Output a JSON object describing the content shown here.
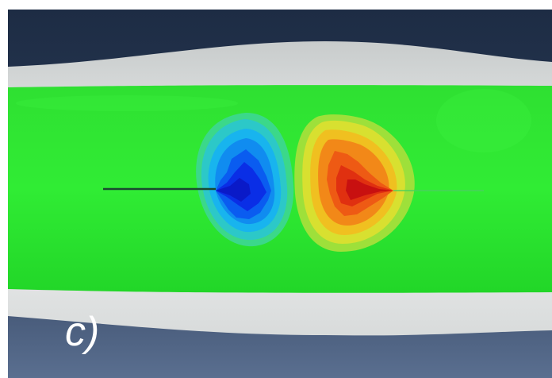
{
  "panel_label": "c)",
  "colors": {
    "background_top": "#1d2c44",
    "background_bottom": "#5a6f90",
    "shell": "#e6e8e8",
    "field_base": "#27e62a",
    "contour_min": "#0a1ee0",
    "contour_max": "#d01010",
    "crack_line": "#1a4a30"
  }
}
